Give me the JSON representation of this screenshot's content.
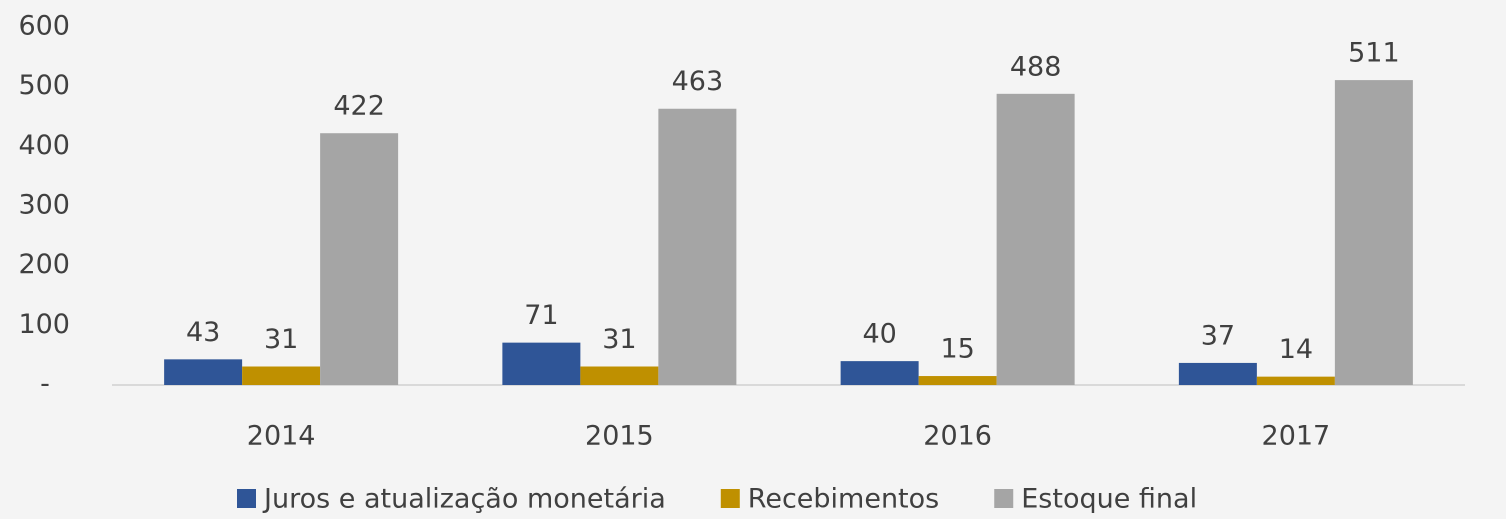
{
  "chart_data": {
    "type": "bar",
    "categories": [
      "2014",
      "2015",
      "2016",
      "2017"
    ],
    "series": [
      {
        "name": "Juros e atualização monetária",
        "color": "#2f5597",
        "values": [
          43,
          71,
          40,
          37
        ]
      },
      {
        "name": "Recebimentos",
        "color": "#bf9000",
        "values": [
          31,
          31,
          15,
          14
        ]
      },
      {
        "name": "Estoque final",
        "color": "#a5a5a5",
        "values": [
          422,
          463,
          488,
          511
        ]
      }
    ],
    "ylim": [
      0,
      600
    ],
    "yticks": [
      {
        "value": 0,
        "label": "-"
      },
      100,
      200,
      300,
      400,
      500,
      600
    ],
    "grid": false,
    "legend": "bottom"
  }
}
